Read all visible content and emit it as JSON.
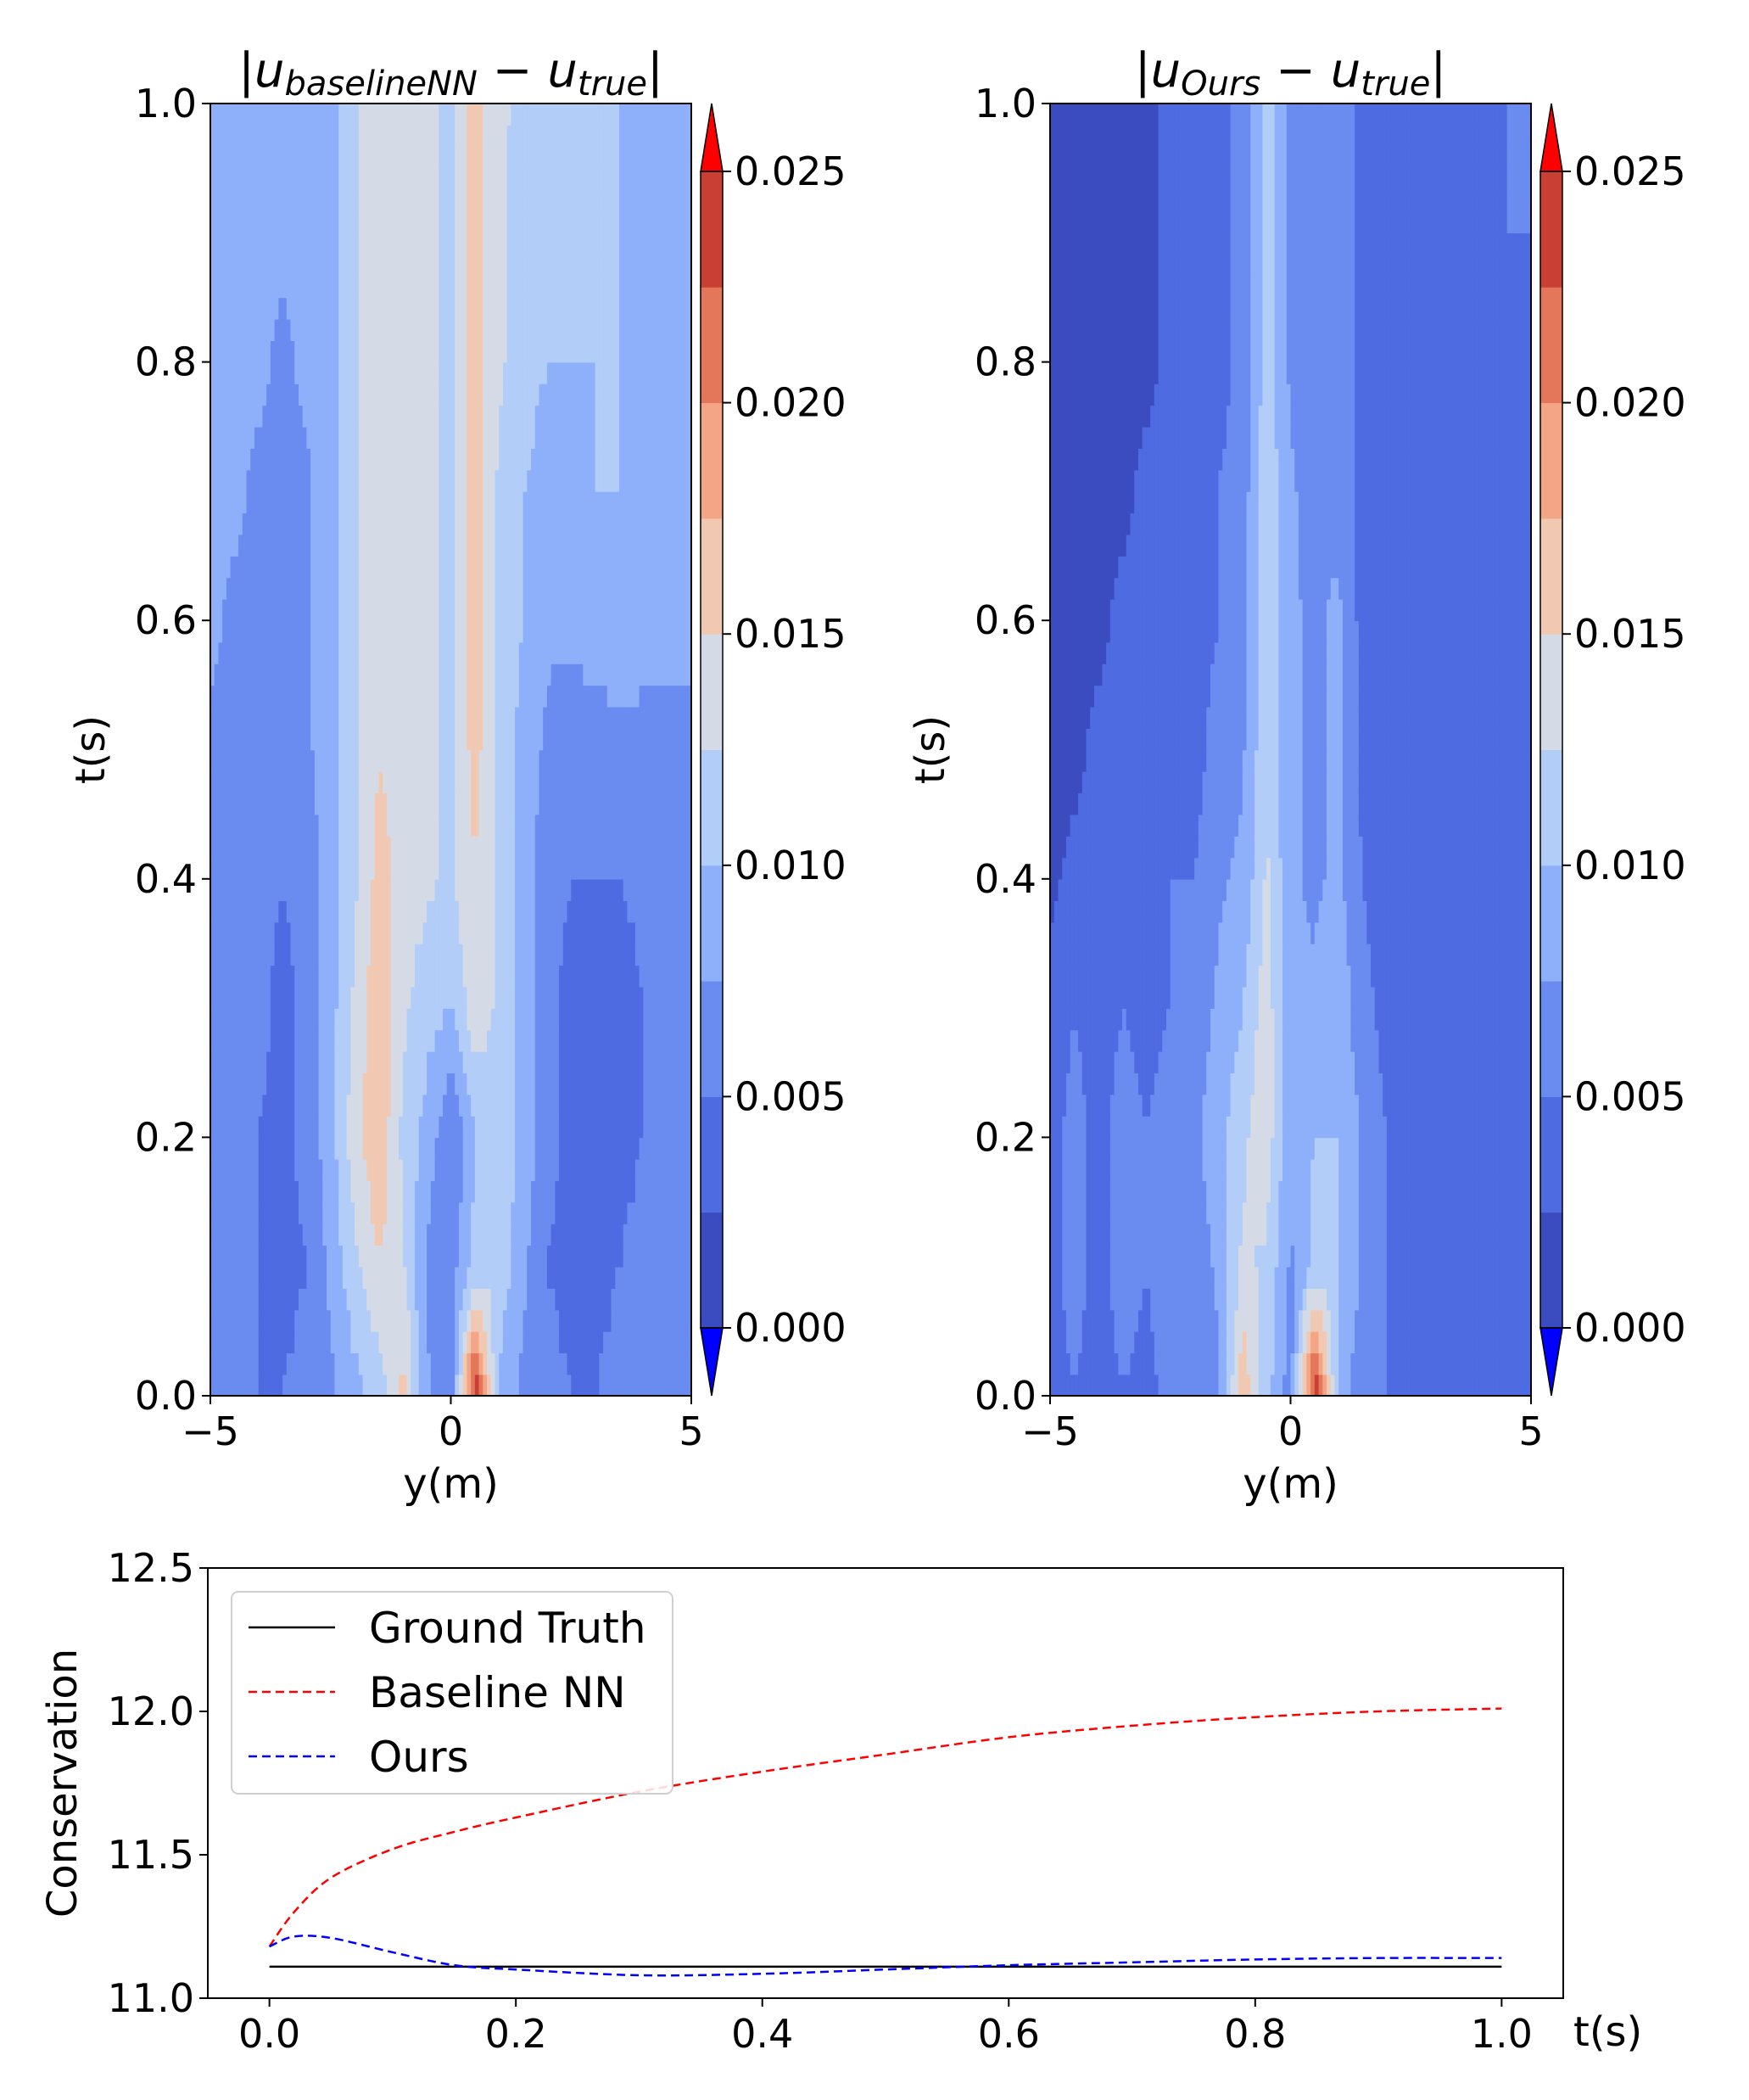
{
  "chart_data": [
    {
      "type": "heatmap",
      "title": "|u_baselineNN − u_true|",
      "title_parts": [
        "|u",
        "baselineNN",
        " − u",
        "true",
        "|"
      ],
      "xlabel": "y(m)",
      "ylabel": "t(s)",
      "xlim": [
        -5,
        5
      ],
      "ylim": [
        0,
        1
      ],
      "xticks": [
        "−5",
        "0",
        "5"
      ],
      "yticks": [
        "0.0",
        "0.2",
        "0.4",
        "0.6",
        "0.8",
        "1.0"
      ],
      "colorbar": {
        "ticks": [
          "0.000",
          "0.005",
          "0.010",
          "0.015",
          "0.020",
          "0.025"
        ],
        "range": [
          0,
          0.025
        ],
        "levels": [
          0,
          0.0025,
          0.005,
          0.0075,
          0.01,
          0.0125,
          0.015,
          0.0175,
          0.02,
          0.0225,
          0.025
        ],
        "colors": [
          "#3b4cc0",
          "#4e6be2",
          "#6a8bef",
          "#8eb0fb",
          "#b2cdf8",
          "#d4dbe6",
          "#f1c9b2",
          "#f4a585",
          "#e4765a",
          "#c93f34",
          "#b40426"
        ],
        "under": "#0000ff",
        "over": "#ff0000"
      },
      "columns_y": [
        -5,
        -4.5,
        -4,
        -3.5,
        -3,
        -2.5,
        -2,
        -1.5,
        -1,
        -0.5,
        0,
        0.5,
        1,
        1.5,
        2,
        2.5,
        3,
        3.5,
        4,
        4.5,
        5
      ],
      "rows_t": [
        {
          "t": 0.0,
          "values": [
            0.006,
            0.006,
            0.005,
            0.005,
            0.006,
            0.007,
            0.009,
            0.011,
            0.016,
            0.008,
            0.006,
            0.025,
            0.009,
            0.007,
            0.006,
            0.005,
            0.005,
            0.006,
            0.006,
            0.006,
            0.006
          ]
        },
        {
          "t": 0.1,
          "values": [
            0.007,
            0.006,
            0.005,
            0.004,
            0.005,
            0.008,
            0.012,
            0.015,
            0.013,
            0.007,
            0.006,
            0.011,
            0.012,
            0.008,
            0.005,
            0.004,
            0.004,
            0.005,
            0.006,
            0.006,
            0.006
          ]
        },
        {
          "t": 0.2,
          "values": [
            0.007,
            0.007,
            0.005,
            0.004,
            0.006,
            0.009,
            0.014,
            0.017,
            0.012,
            0.009,
            0.005,
            0.01,
            0.012,
            0.009,
            0.006,
            0.004,
            0.003,
            0.004,
            0.005,
            0.006,
            0.006
          ]
        },
        {
          "t": 0.3,
          "values": [
            0.007,
            0.007,
            0.006,
            0.004,
            0.006,
            0.009,
            0.013,
            0.017,
            0.013,
            0.011,
            0.01,
            0.014,
            0.012,
            0.009,
            0.006,
            0.004,
            0.003,
            0.003,
            0.005,
            0.006,
            0.007
          ]
        },
        {
          "t": 0.4,
          "values": [
            0.007,
            0.007,
            0.006,
            0.005,
            0.006,
            0.009,
            0.012,
            0.016,
            0.014,
            0.013,
            0.012,
            0.015,
            0.012,
            0.009,
            0.006,
            0.005,
            0.005,
            0.005,
            0.006,
            0.007,
            0.007
          ]
        },
        {
          "t": 0.5,
          "values": [
            0.007,
            0.007,
            0.006,
            0.005,
            0.007,
            0.009,
            0.012,
            0.015,
            0.014,
            0.013,
            0.012,
            0.016,
            0.012,
            0.009,
            0.007,
            0.006,
            0.006,
            0.007,
            0.007,
            0.007,
            0.007
          ]
        },
        {
          "t": 0.6,
          "values": [
            0.008,
            0.007,
            0.007,
            0.006,
            0.007,
            0.009,
            0.012,
            0.015,
            0.014,
            0.013,
            0.012,
            0.016,
            0.012,
            0.01,
            0.008,
            0.008,
            0.009,
            0.009,
            0.008,
            0.008,
            0.008
          ]
        },
        {
          "t": 0.7,
          "values": [
            0.008,
            0.008,
            0.007,
            0.007,
            0.007,
            0.009,
            0.012,
            0.015,
            0.014,
            0.013,
            0.012,
            0.016,
            0.012,
            0.01,
            0.009,
            0.009,
            0.01,
            0.01,
            0.009,
            0.008,
            0.008
          ]
        },
        {
          "t": 0.8,
          "values": [
            0.008,
            0.008,
            0.008,
            0.007,
            0.008,
            0.009,
            0.012,
            0.015,
            0.014,
            0.013,
            0.012,
            0.016,
            0.013,
            0.011,
            0.01,
            0.01,
            0.01,
            0.01,
            0.009,
            0.008,
            0.008
          ]
        },
        {
          "t": 0.9,
          "values": [
            0.008,
            0.008,
            0.008,
            0.008,
            0.008,
            0.009,
            0.012,
            0.015,
            0.014,
            0.013,
            0.012,
            0.016,
            0.013,
            0.011,
            0.011,
            0.01,
            0.01,
            0.01,
            0.009,
            0.008,
            0.008
          ]
        },
        {
          "t": 1.0,
          "values": [
            0.008,
            0.008,
            0.008,
            0.008,
            0.008,
            0.009,
            0.012,
            0.015,
            0.014,
            0.013,
            0.012,
            0.016,
            0.013,
            0.012,
            0.011,
            0.011,
            0.01,
            0.01,
            0.009,
            0.008,
            0.008
          ]
        }
      ]
    },
    {
      "type": "heatmap",
      "title": "|u_Ours − u_true|",
      "title_parts": [
        "|u",
        "Ours",
        " − u",
        "true",
        "|"
      ],
      "xlabel": "y(m)",
      "ylabel": "t(s)",
      "xlim": [
        -5,
        5
      ],
      "ylim": [
        0,
        1
      ],
      "xticks": [
        "−5",
        "0",
        "5"
      ],
      "yticks": [
        "0.0",
        "0.2",
        "0.4",
        "0.6",
        "0.8",
        "1.0"
      ],
      "colorbar": {
        "ticks": [
          "0.000",
          "0.005",
          "0.010",
          "0.015",
          "0.020",
          "0.025"
        ],
        "range": [
          0,
          0.025
        ],
        "levels": [
          0,
          0.0025,
          0.005,
          0.0075,
          0.01,
          0.0125,
          0.015,
          0.0175,
          0.02,
          0.0225,
          0.025
        ],
        "colors": [
          "#3b4cc0",
          "#4e6be2",
          "#6a8bef",
          "#8eb0fb",
          "#b2cdf8",
          "#d4dbe6",
          "#f1c9b2",
          "#f4a585",
          "#e4765a",
          "#c93f34",
          "#b40426"
        ],
        "under": "#0000ff",
        "over": "#ff0000"
      },
      "columns_y": [
        -5,
        -4.5,
        -4,
        -3.5,
        -3,
        -2.5,
        -2,
        -1.5,
        -1,
        -0.5,
        0,
        0.5,
        1,
        1.5,
        2,
        2.5,
        3,
        3.5,
        4,
        4.5,
        5
      ],
      "rows_t": [
        {
          "t": 0.0,
          "values": [
            0.004,
            0.005,
            0.004,
            0.005,
            0.004,
            0.006,
            0.005,
            0.007,
            0.017,
            0.011,
            0.006,
            0.025,
            0.009,
            0.006,
            0.005,
            0.004,
            0.004,
            0.005,
            0.004,
            0.004,
            0.004
          ]
        },
        {
          "t": 0.1,
          "values": [
            0.004,
            0.006,
            0.004,
            0.006,
            0.005,
            0.007,
            0.006,
            0.008,
            0.013,
            0.012,
            0.007,
            0.011,
            0.01,
            0.007,
            0.005,
            0.004,
            0.004,
            0.004,
            0.004,
            0.004,
            0.004
          ]
        },
        {
          "t": 0.2,
          "values": [
            0.004,
            0.006,
            0.004,
            0.006,
            0.005,
            0.006,
            0.007,
            0.009,
            0.012,
            0.014,
            0.008,
            0.01,
            0.01,
            0.007,
            0.005,
            0.004,
            0.003,
            0.003,
            0.004,
            0.003,
            0.003
          ]
        },
        {
          "t": 0.3,
          "values": [
            0.003,
            0.005,
            0.004,
            0.005,
            0.004,
            0.005,
            0.006,
            0.008,
            0.01,
            0.014,
            0.008,
            0.008,
            0.009,
            0.006,
            0.004,
            0.003,
            0.003,
            0.003,
            0.003,
            0.003,
            0.003
          ]
        },
        {
          "t": 0.4,
          "values": [
            0.002,
            0.003,
            0.003,
            0.004,
            0.004,
            0.005,
            0.005,
            0.007,
            0.008,
            0.013,
            0.008,
            0.007,
            0.008,
            0.005,
            0.003,
            0.003,
            0.003,
            0.003,
            0.003,
            0.003,
            0.003
          ]
        },
        {
          "t": 0.5,
          "values": [
            0.002,
            0.002,
            0.003,
            0.003,
            0.003,
            0.004,
            0.004,
            0.006,
            0.007,
            0.012,
            0.008,
            0.007,
            0.008,
            0.004,
            0.003,
            0.003,
            0.003,
            0.003,
            0.003,
            0.003,
            0.003
          ]
        },
        {
          "t": 0.6,
          "values": [
            0.002,
            0.002,
            0.002,
            0.003,
            0.003,
            0.004,
            0.004,
            0.005,
            0.007,
            0.012,
            0.008,
            0.007,
            0.008,
            0.004,
            0.003,
            0.003,
            0.003,
            0.003,
            0.003,
            0.004,
            0.003
          ]
        },
        {
          "t": 0.7,
          "values": [
            0.002,
            0.002,
            0.002,
            0.002,
            0.003,
            0.003,
            0.004,
            0.005,
            0.006,
            0.012,
            0.008,
            0.006,
            0.007,
            0.004,
            0.003,
            0.003,
            0.003,
            0.003,
            0.003,
            0.004,
            0.004
          ]
        },
        {
          "t": 0.8,
          "values": [
            0.002,
            0.002,
            0.002,
            0.002,
            0.002,
            0.003,
            0.003,
            0.004,
            0.006,
            0.011,
            0.007,
            0.006,
            0.007,
            0.004,
            0.003,
            0.003,
            0.003,
            0.003,
            0.004,
            0.005,
            0.004
          ]
        },
        {
          "t": 0.9,
          "values": [
            0.002,
            0.002,
            0.002,
            0.002,
            0.002,
            0.003,
            0.003,
            0.004,
            0.006,
            0.011,
            0.007,
            0.006,
            0.007,
            0.004,
            0.003,
            0.003,
            0.003,
            0.003,
            0.004,
            0.005,
            0.005
          ]
        },
        {
          "t": 1.0,
          "values": [
            0.002,
            0.002,
            0.002,
            0.002,
            0.002,
            0.003,
            0.003,
            0.004,
            0.006,
            0.011,
            0.007,
            0.006,
            0.007,
            0.004,
            0.003,
            0.003,
            0.003,
            0.003,
            0.004,
            0.005,
            0.005
          ]
        }
      ]
    },
    {
      "type": "line",
      "xlabel": "t(s)",
      "ylabel": "Conservation",
      "xlim": [
        -0.05,
        1.05
      ],
      "ylim": [
        11.0,
        12.5
      ],
      "xticks": [
        "0.0",
        "0.2",
        "0.4",
        "0.6",
        "0.8",
        "1.0"
      ],
      "yticks": [
        "11.0",
        "11.5",
        "12.0",
        "12.5"
      ],
      "legend_position": "upper-left",
      "x": [
        0.0,
        0.02,
        0.05,
        0.1,
        0.15,
        0.2,
        0.3,
        0.4,
        0.5,
        0.6,
        0.7,
        0.8,
        0.9,
        1.0
      ],
      "series": [
        {
          "name": "Ground Truth",
          "color": "#000000",
          "dash": "solid",
          "values": [
            11.11,
            11.11,
            11.11,
            11.11,
            11.11,
            11.11,
            11.11,
            11.11,
            11.11,
            11.11,
            11.11,
            11.11,
            11.11,
            11.11
          ]
        },
        {
          "name": "Baseline NN",
          "color": "#ff0000",
          "dash": "dashed",
          "values": [
            11.18,
            11.3,
            11.42,
            11.52,
            11.58,
            11.63,
            11.72,
            11.79,
            11.85,
            11.91,
            11.95,
            11.98,
            12.0,
            12.01
          ]
        },
        {
          "name": "Ours",
          "color": "#0000ff",
          "dash": "dashed",
          "values": [
            11.18,
            11.215,
            11.21,
            11.16,
            11.115,
            11.1,
            11.08,
            11.085,
            11.1,
            11.115,
            11.125,
            11.135,
            11.14,
            11.14
          ]
        }
      ]
    }
  ]
}
